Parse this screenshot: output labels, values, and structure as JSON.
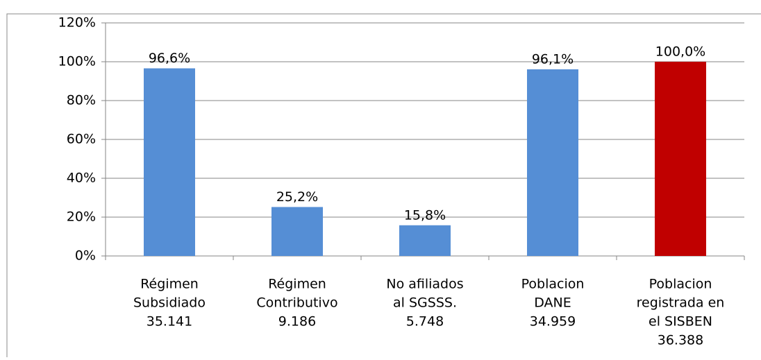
{
  "chart_data": {
    "type": "bar",
    "categories": [
      [
        "Régimen",
        "Subsidiado",
        "35.141"
      ],
      [
        "Régimen",
        "Contributivo",
        "9.186"
      ],
      [
        "No afiliados",
        "al SGSSS.",
        "5.748"
      ],
      [
        "Poblacion",
        "DANE",
        "34.959"
      ],
      [
        "Poblacion",
        "registrada en",
        "el SISBEN",
        "36.388"
      ]
    ],
    "values": [
      96.6,
      25.2,
      15.8,
      96.1,
      100.0
    ],
    "value_labels": [
      "96,6%",
      "25,2%",
      "15,8%",
      "96,1%",
      "100,0%"
    ],
    "colors": [
      "#558ed5",
      "#558ed5",
      "#558ed5",
      "#558ed5",
      "#c00000"
    ],
    "ylim": [
      0,
      120
    ],
    "yticks": [
      {
        "value": 0,
        "label": "0%"
      },
      {
        "value": 20,
        "label": "20%"
      },
      {
        "value": 40,
        "label": "40%"
      },
      {
        "value": 60,
        "label": "60%"
      },
      {
        "value": 80,
        "label": "80%"
      },
      {
        "value": 100,
        "label": "100%"
      },
      {
        "value": 120,
        "label": "120%"
      }
    ],
    "grid": true
  }
}
